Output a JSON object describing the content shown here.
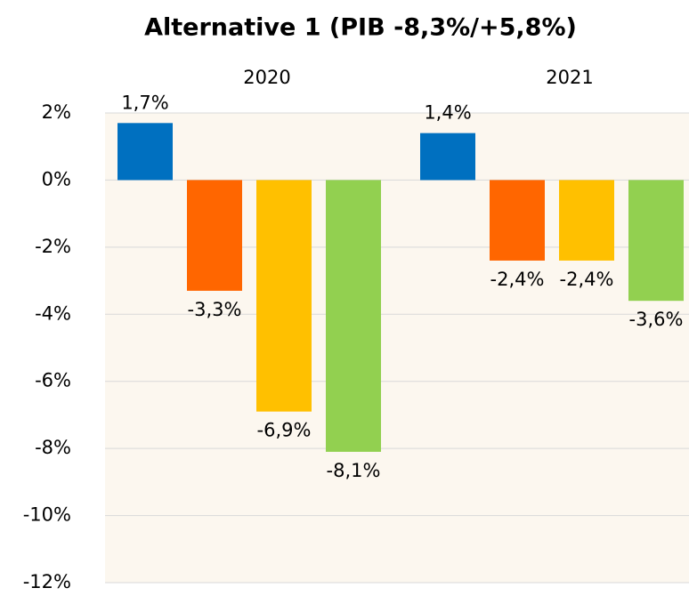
{
  "chart_data": {
    "type": "bar",
    "title": "Alternative 1 (PIB -8,3%/+5,8%)",
    "categories": [
      "2020",
      "2021"
    ],
    "series": [
      {
        "color": "#0070c0",
        "values": [
          1.7,
          1.4
        ],
        "value_labels": [
          "1,7%",
          "1,4%"
        ]
      },
      {
        "color": "#ff6600",
        "values": [
          -3.3,
          -2.4
        ],
        "value_labels": [
          "-3,3%",
          "-2,4%"
        ]
      },
      {
        "color": "#ffc000",
        "values": [
          -6.9,
          -2.4
        ],
        "value_labels": [
          "-6,9%",
          "-2,4%"
        ]
      },
      {
        "color": "#92d050",
        "values": [
          -8.1,
          -3.6
        ],
        "value_labels": [
          "-8,1%",
          "-3,6%"
        ]
      }
    ],
    "ylim": [
      -12,
      2
    ],
    "yticks": [
      {
        "value": 2,
        "label": "2%"
      },
      {
        "value": 0,
        "label": "0%"
      },
      {
        "value": -2,
        "label": "-2%"
      },
      {
        "value": -4,
        "label": "-4%"
      },
      {
        "value": -6,
        "label": "-6%"
      },
      {
        "value": -8,
        "label": "-8%"
      },
      {
        "value": -10,
        "label": "-10%"
      },
      {
        "value": -12,
        "label": "-12%"
      }
    ],
    "grid": true
  }
}
